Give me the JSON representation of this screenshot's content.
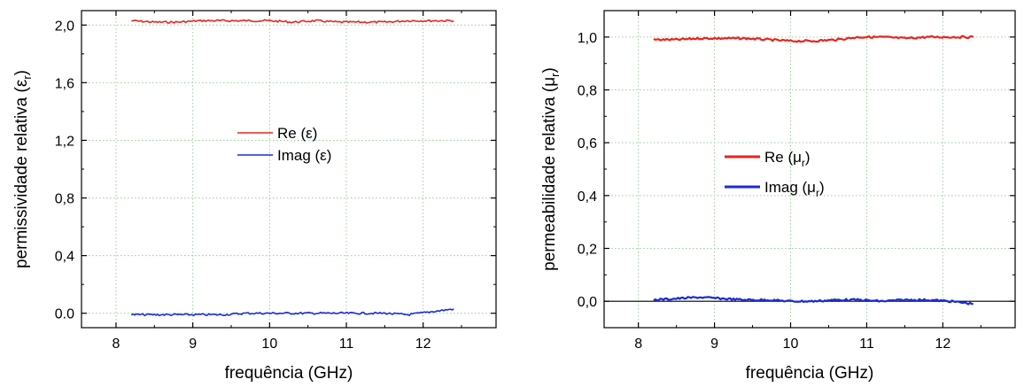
{
  "chart_data": [
    {
      "type": "line",
      "xlabel": "frequência (GHz)",
      "ylabel": "permissividade relativa (ε",
      "ylabel_sub": "r",
      "ylabel_close": ")",
      "xlim": [
        7.55,
        12.95
      ],
      "ylim": [
        -0.1,
        2.1
      ],
      "xticks": [
        8,
        9,
        10,
        11,
        12
      ],
      "xtick_labels": [
        "8",
        "9",
        "10",
        "11",
        "12"
      ],
      "yticks": [
        0.0,
        0.4,
        0.8,
        1.2,
        1.6,
        2.0
      ],
      "ytick_labels": [
        "0,0",
        "0,4",
        "0,8",
        "1,2",
        "1,6",
        "2,0"
      ],
      "ytick_labels_note": "first label printed with a period in the original",
      "ytick_label_first": "0.0",
      "grid": true,
      "zero_line": false,
      "legend_position": "center",
      "series": [
        {
          "name": "Re (ε)",
          "name_base": "Re (ε)",
          "name_sub": "",
          "name_close": "",
          "color": "#e8251f",
          "x": [
            8.2,
            8.5,
            8.8,
            9.1,
            9.4,
            9.7,
            10.0,
            10.3,
            10.6,
            10.9,
            11.2,
            11.5,
            11.8,
            12.1,
            12.4
          ],
          "y": [
            2.03,
            2.02,
            2.02,
            2.03,
            2.03,
            2.03,
            2.03,
            2.02,
            2.03,
            2.02,
            2.02,
            2.02,
            2.03,
            2.03,
            2.03
          ]
        },
        {
          "name": "Imag (ε)",
          "name_base": "Imag (ε)",
          "name_sub": "",
          "name_close": "",
          "color": "#1a2ad8",
          "x": [
            8.2,
            8.5,
            8.8,
            9.1,
            9.4,
            9.7,
            10.0,
            10.3,
            10.6,
            10.9,
            11.2,
            11.5,
            11.8,
            12.1,
            12.4
          ],
          "y": [
            -0.01,
            -0.01,
            -0.01,
            -0.01,
            -0.01,
            0.0,
            0.0,
            0.0,
            0.0,
            0.0,
            0.0,
            0.0,
            -0.01,
            0.01,
            0.03
          ]
        }
      ]
    },
    {
      "type": "line",
      "xlabel": "frequência (GHz)",
      "ylabel": "permeabilidade relativa (μ",
      "ylabel_sub": "r",
      "ylabel_close": ")",
      "xlim": [
        7.55,
        12.95
      ],
      "ylim": [
        -0.1,
        1.1
      ],
      "xticks": [
        8,
        9,
        10,
        11,
        12
      ],
      "xtick_labels": [
        "8",
        "9",
        "10",
        "11",
        "12"
      ],
      "yticks": [
        0.0,
        0.2,
        0.4,
        0.6,
        0.8,
        1.0
      ],
      "ytick_labels": [
        "0,0",
        "0,2",
        "0,4",
        "0,6",
        "0,8",
        "1,0"
      ],
      "ytick_label_first": "0,0",
      "grid": true,
      "zero_line": true,
      "legend_position": "center",
      "series": [
        {
          "name": "Re (μr)",
          "name_base": "Re (μ",
          "name_sub": "r",
          "name_close": ")",
          "color": "#e8251f",
          "x": [
            8.2,
            8.5,
            8.8,
            9.1,
            9.4,
            9.7,
            10.0,
            10.3,
            10.6,
            10.9,
            11.2,
            11.5,
            11.8,
            12.1,
            12.4
          ],
          "y": [
            0.99,
            0.99,
            0.995,
            0.995,
            0.995,
            0.99,
            0.985,
            0.985,
            0.99,
            1.0,
            1.0,
            0.995,
            1.0,
            1.0,
            1.0
          ]
        },
        {
          "name": "Imag (μr)",
          "name_base": "Imag (μ",
          "name_sub": "r",
          "name_close": ")",
          "color": "#1a2ad8",
          "x": [
            8.2,
            8.5,
            8.8,
            9.1,
            9.4,
            9.7,
            10.0,
            10.3,
            10.6,
            10.9,
            11.2,
            11.5,
            11.8,
            12.1,
            12.4
          ],
          "y": [
            0.005,
            0.01,
            0.015,
            0.01,
            0.005,
            0.005,
            0.0,
            0.0,
            0.005,
            0.005,
            0.0,
            0.005,
            0.005,
            0.0,
            -0.01
          ]
        }
      ]
    }
  ]
}
